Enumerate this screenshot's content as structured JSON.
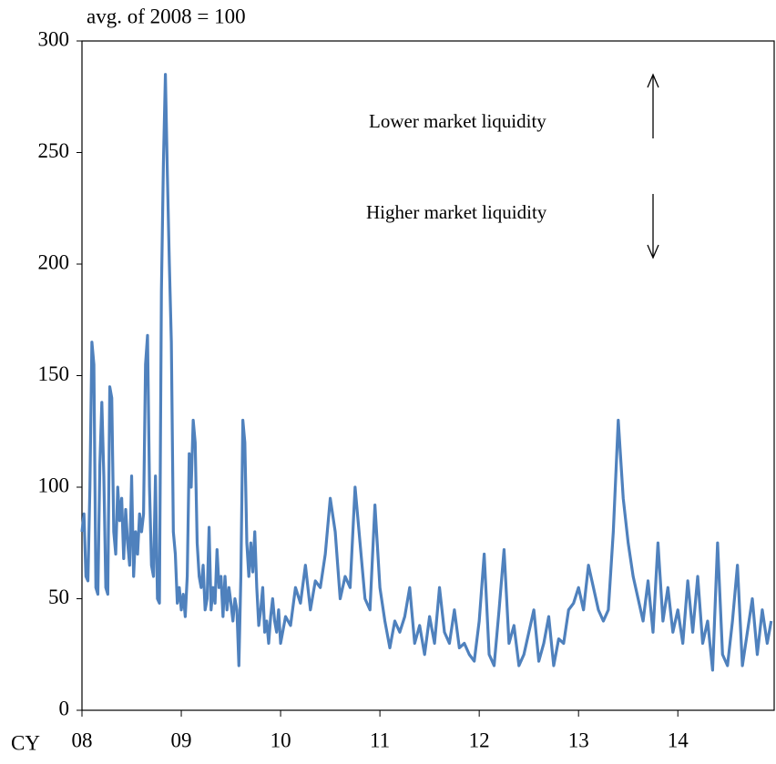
{
  "chart_data": {
    "type": "line",
    "title": "avg. of 2008  = 100",
    "x_prefix": "CY",
    "annotations": [
      "Lower market liquidity",
      "Higher market liquidity"
    ],
    "color": "#4f81bd",
    "x": [
      2008.0,
      2008.02,
      2008.04,
      2008.06,
      2008.08,
      2008.1,
      2008.12,
      2008.14,
      2008.16,
      2008.18,
      2008.2,
      2008.22,
      2008.24,
      2008.26,
      2008.28,
      2008.3,
      2008.32,
      2008.34,
      2008.36,
      2008.38,
      2008.4,
      2008.42,
      2008.44,
      2008.46,
      2008.48,
      2008.5,
      2008.52,
      2008.54,
      2008.56,
      2008.58,
      2008.6,
      2008.62,
      2008.64,
      2008.66,
      2008.68,
      2008.7,
      2008.72,
      2008.74,
      2008.76,
      2008.78,
      2008.8,
      2008.82,
      2008.84,
      2008.86,
      2008.88,
      2008.9,
      2008.92,
      2008.94,
      2008.96,
      2008.98,
      2009.0,
      2009.02,
      2009.04,
      2009.06,
      2009.08,
      2009.1,
      2009.12,
      2009.14,
      2009.16,
      2009.18,
      2009.2,
      2009.22,
      2009.24,
      2009.26,
      2009.28,
      2009.3,
      2009.32,
      2009.34,
      2009.36,
      2009.38,
      2009.4,
      2009.42,
      2009.44,
      2009.46,
      2009.48,
      2009.5,
      2009.52,
      2009.54,
      2009.56,
      2009.58,
      2009.6,
      2009.62,
      2009.64,
      2009.66,
      2009.68,
      2009.7,
      2009.72,
      2009.74,
      2009.76,
      2009.78,
      2009.8,
      2009.82,
      2009.84,
      2009.86,
      2009.88,
      2009.9,
      2009.92,
      2009.94,
      2009.96,
      2009.98,
      2010.0,
      2010.05,
      2010.1,
      2010.15,
      2010.2,
      2010.25,
      2010.3,
      2010.35,
      2010.4,
      2010.45,
      2010.5,
      2010.55,
      2010.6,
      2010.65,
      2010.7,
      2010.75,
      2010.8,
      2010.85,
      2010.9,
      2010.95,
      2011.0,
      2011.05,
      2011.1,
      2011.15,
      2011.2,
      2011.25,
      2011.3,
      2011.35,
      2011.4,
      2011.45,
      2011.5,
      2011.55,
      2011.6,
      2011.65,
      2011.7,
      2011.75,
      2011.8,
      2011.85,
      2011.9,
      2011.95,
      2012.0,
      2012.05,
      2012.1,
      2012.15,
      2012.2,
      2012.25,
      2012.3,
      2012.35,
      2012.4,
      2012.45,
      2012.5,
      2012.55,
      2012.6,
      2012.65,
      2012.7,
      2012.75,
      2012.8,
      2012.85,
      2012.9,
      2012.95,
      2013.0,
      2013.05,
      2013.1,
      2013.15,
      2013.2,
      2013.25,
      2013.3,
      2013.35,
      2013.4,
      2013.45,
      2013.5,
      2013.55,
      2013.6,
      2013.65,
      2013.7,
      2013.75,
      2013.8,
      2013.85,
      2013.9,
      2013.95,
      2014.0,
      2014.05,
      2014.1,
      2014.15,
      2014.2,
      2014.25,
      2014.3,
      2014.35,
      2014.4,
      2014.45,
      2014.5,
      2014.55,
      2014.6,
      2014.65,
      2014.7,
      2014.75,
      2014.8,
      2014.85,
      2014.9,
      2014.94
    ],
    "values": [
      80,
      88,
      60,
      58,
      100,
      165,
      155,
      55,
      52,
      110,
      138,
      105,
      55,
      52,
      145,
      140,
      80,
      70,
      100,
      85,
      95,
      68,
      90,
      75,
      65,
      105,
      60,
      80,
      70,
      88,
      80,
      88,
      155,
      168,
      100,
      65,
      60,
      105,
      50,
      48,
      188,
      245,
      285,
      240,
      200,
      165,
      80,
      70,
      48,
      55,
      45,
      52,
      42,
      60,
      115,
      100,
      130,
      120,
      75,
      60,
      55,
      65,
      45,
      50,
      82,
      45,
      55,
      48,
      72,
      55,
      60,
      42,
      60,
      45,
      55,
      48,
      40,
      50,
      45,
      20,
      60,
      130,
      120,
      75,
      60,
      75,
      62,
      80,
      55,
      38,
      45,
      55,
      35,
      40,
      30,
      42,
      50,
      40,
      35,
      45,
      30,
      42,
      38,
      55,
      48,
      65,
      45,
      58,
      55,
      70,
      95,
      80,
      50,
      60,
      55,
      100,
      75,
      50,
      45,
      92,
      55,
      40,
      28,
      40,
      35,
      42,
      55,
      30,
      38,
      25,
      42,
      30,
      55,
      35,
      30,
      45,
      28,
      30,
      25,
      22,
      40,
      70,
      25,
      20,
      45,
      72,
      30,
      38,
      20,
      25,
      35,
      45,
      22,
      30,
      42,
      20,
      32,
      30,
      45,
      48,
      55,
      45,
      65,
      55,
      45,
      40,
      45,
      80,
      130,
      95,
      75,
      60,
      50,
      40,
      58,
      35,
      75,
      40,
      55,
      35,
      45,
      30,
      58,
      35,
      60,
      30,
      40,
      18,
      75,
      25,
      20,
      40,
      65,
      20,
      35,
      50,
      25,
      45,
      30,
      40
    ],
    "xlim": [
      2008,
      2014.97
    ],
    "xticks": [
      {
        "value": 2008,
        "label": "08"
      },
      {
        "value": 2009,
        "label": "09"
      },
      {
        "value": 2010,
        "label": "10"
      },
      {
        "value": 2011,
        "label": "11"
      },
      {
        "value": 2012,
        "label": "12"
      },
      {
        "value": 2013,
        "label": "13"
      },
      {
        "value": 2014,
        "label": "14"
      }
    ],
    "ylim": [
      0,
      300
    ],
    "yticks": [
      0,
      50,
      100,
      150,
      200,
      250,
      300
    ]
  }
}
